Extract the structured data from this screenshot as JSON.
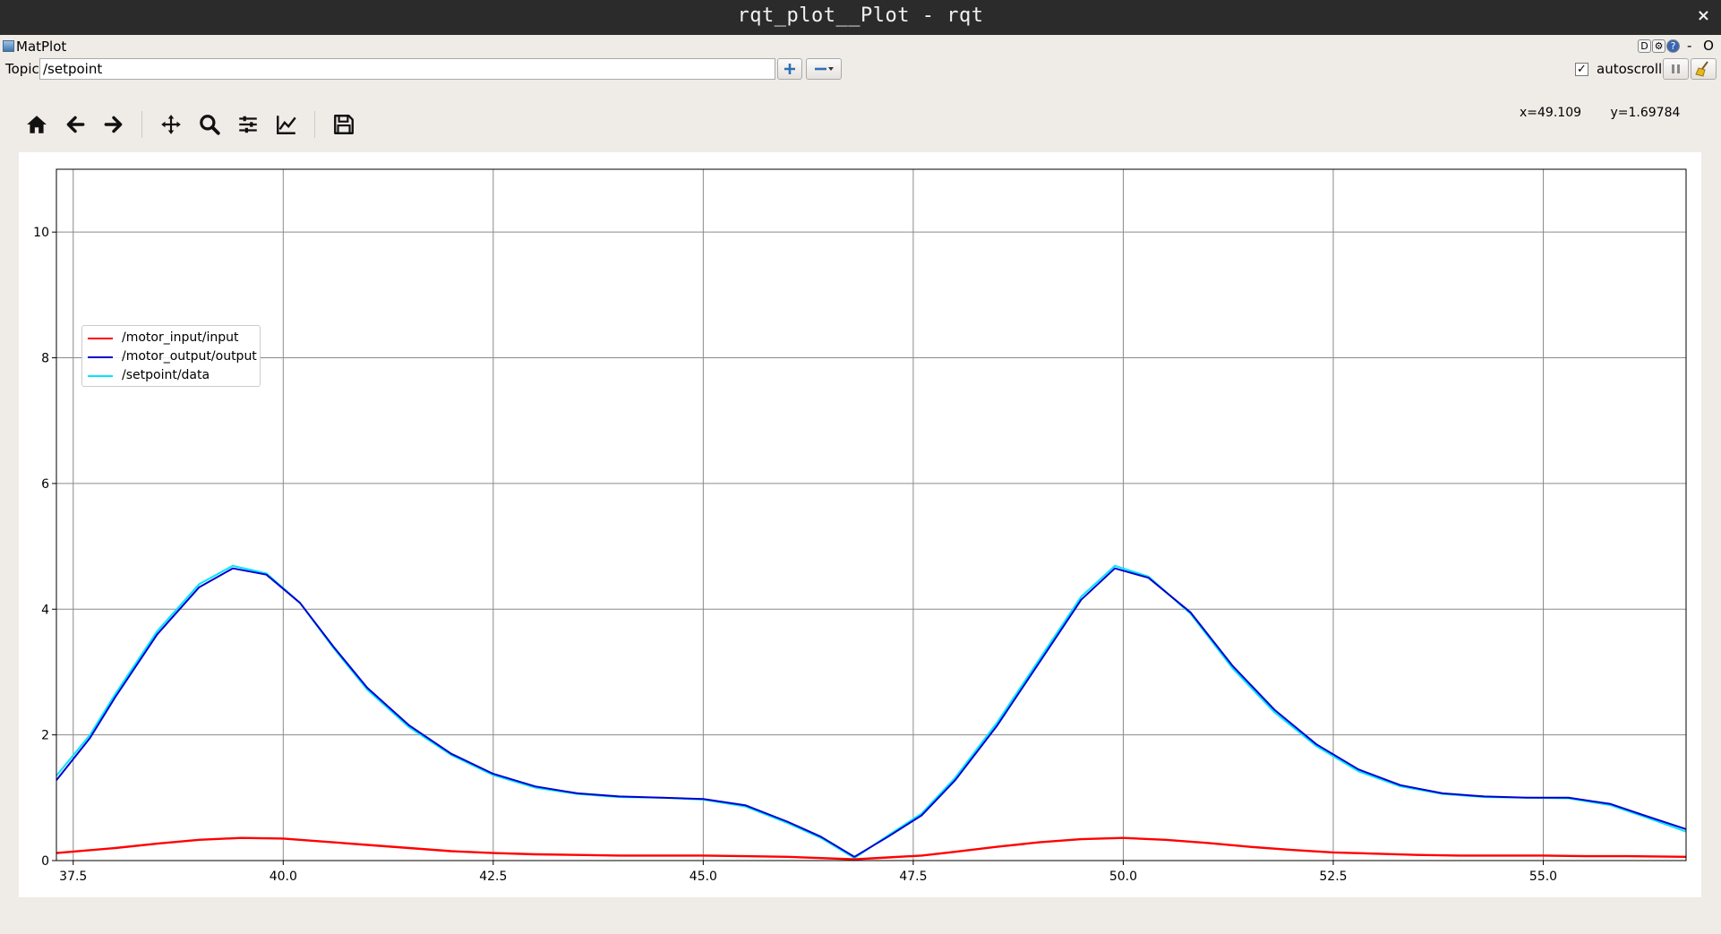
{
  "window": {
    "title": "rqt_plot__Plot - rqt",
    "close_glyph": "×"
  },
  "plugin_bar": {
    "name": "MatPlot",
    "dock_labels": [
      "D",
      "⚙",
      "?"
    ],
    "window_controls": "- O"
  },
  "topic_bar": {
    "label": "Topic",
    "value": "/setpoint",
    "add_icon": "plus-icon",
    "remove_icon": "minus-dropdown-icon",
    "autoscroll_checked": true,
    "autoscroll_label": "autoscroll",
    "pause_icon": "pause-icon",
    "clear_icon": "broom-icon"
  },
  "toolbar": {
    "items": [
      "home-icon",
      "back-arrow-icon",
      "forward-arrow-icon",
      "pan-icon",
      "zoom-icon",
      "subplots-config-icon",
      "axes-edit-icon",
      "save-icon"
    ]
  },
  "coords": {
    "x_text": "x=49.109",
    "y_text": "y=1.69784"
  },
  "colors": {
    "input": "#ff0000",
    "output": "#0000cd",
    "setpoint": "#00e5ff",
    "grid": "#8a8a8a",
    "window_bg": "#efebe7"
  },
  "chart_data": {
    "type": "line",
    "title": "",
    "xlabel": "",
    "ylabel": "",
    "xlim": [
      37.3,
      56.7
    ],
    "ylim": [
      0,
      11
    ],
    "grid": true,
    "legend_position": "top-left",
    "x_ticks": [
      37.5,
      40.0,
      42.5,
      45.0,
      47.5,
      50.0,
      52.5,
      55.0
    ],
    "x_tick_labels": [
      "37.5",
      "40.0",
      "42.5",
      "45.0",
      "47.5",
      "50.0",
      "52.5",
      "55.0"
    ],
    "y_ticks": [
      0,
      2,
      4,
      6,
      8,
      10
    ],
    "y_tick_labels": [
      "0",
      "2",
      "4",
      "6",
      "8",
      "10"
    ],
    "series": [
      {
        "name": "/motor_input/input",
        "color": "#ff0000",
        "x": [
          37.3,
          38.0,
          38.5,
          39.0,
          39.5,
          40.0,
          40.5,
          41.0,
          41.5,
          42.0,
          42.5,
          43.0,
          43.5,
          44.0,
          44.5,
          45.0,
          45.5,
          46.0,
          46.4,
          46.8,
          47.2,
          47.6,
          48.0,
          48.5,
          49.0,
          49.5,
          50.0,
          50.5,
          51.0,
          51.5,
          52.0,
          52.5,
          53.0,
          53.5,
          54.0,
          54.5,
          55.0,
          55.5,
          56.0,
          56.7
        ],
        "y": [
          0.12,
          0.2,
          0.27,
          0.33,
          0.36,
          0.35,
          0.3,
          0.25,
          0.2,
          0.15,
          0.12,
          0.1,
          0.09,
          0.08,
          0.08,
          0.08,
          0.07,
          0.06,
          0.04,
          0.02,
          0.05,
          0.08,
          0.14,
          0.22,
          0.29,
          0.34,
          0.36,
          0.33,
          0.28,
          0.22,
          0.17,
          0.13,
          0.11,
          0.09,
          0.08,
          0.08,
          0.08,
          0.07,
          0.07,
          0.06
        ]
      },
      {
        "name": "/motor_output/output",
        "color": "#0000cd",
        "x": [
          37.3,
          37.7,
          38.0,
          38.5,
          39.0,
          39.4,
          39.8,
          40.2,
          40.6,
          41.0,
          41.5,
          42.0,
          42.5,
          43.0,
          43.5,
          44.0,
          44.5,
          45.0,
          45.5,
          46.0,
          46.4,
          46.8,
          47.2,
          47.6,
          48.0,
          48.5,
          49.0,
          49.5,
          49.9,
          50.3,
          50.8,
          51.3,
          51.8,
          52.3,
          52.8,
          53.3,
          53.8,
          54.3,
          54.8,
          55.3,
          55.8,
          56.2,
          56.7
        ],
        "y": [
          1.28,
          1.95,
          2.6,
          3.6,
          4.35,
          4.65,
          4.55,
          4.1,
          3.4,
          2.75,
          2.15,
          1.7,
          1.38,
          1.18,
          1.07,
          1.02,
          1.0,
          0.98,
          0.88,
          0.62,
          0.38,
          0.06,
          0.38,
          0.72,
          1.28,
          2.15,
          3.15,
          4.15,
          4.65,
          4.5,
          3.95,
          3.1,
          2.4,
          1.85,
          1.45,
          1.2,
          1.07,
          1.02,
          1.0,
          1.0,
          0.9,
          0.72,
          0.5
        ]
      },
      {
        "name": "/setpoint/data",
        "color": "#00e5ff",
        "x": [
          37.3,
          37.7,
          38.0,
          38.5,
          39.0,
          39.4,
          39.8,
          40.2,
          40.6,
          41.0,
          41.5,
          42.0,
          42.5,
          43.0,
          43.5,
          44.0,
          44.5,
          45.0,
          45.5,
          46.0,
          46.4,
          46.8,
          47.2,
          47.6,
          48.0,
          48.5,
          49.0,
          49.5,
          49.9,
          50.3,
          50.8,
          51.3,
          51.8,
          52.3,
          52.8,
          53.3,
          53.8,
          54.3,
          54.8,
          55.3,
          55.8,
          56.2,
          56.7
        ],
        "y": [
          1.35,
          2.0,
          2.65,
          3.65,
          4.4,
          4.69,
          4.57,
          4.1,
          3.38,
          2.72,
          2.12,
          1.68,
          1.36,
          1.16,
          1.06,
          1.01,
          1.0,
          0.97,
          0.86,
          0.6,
          0.36,
          0.04,
          0.4,
          0.75,
          1.32,
          2.2,
          3.2,
          4.2,
          4.69,
          4.52,
          3.93,
          3.06,
          2.36,
          1.82,
          1.42,
          1.18,
          1.06,
          1.01,
          1.0,
          0.99,
          0.88,
          0.7,
          0.46
        ]
      }
    ]
  }
}
